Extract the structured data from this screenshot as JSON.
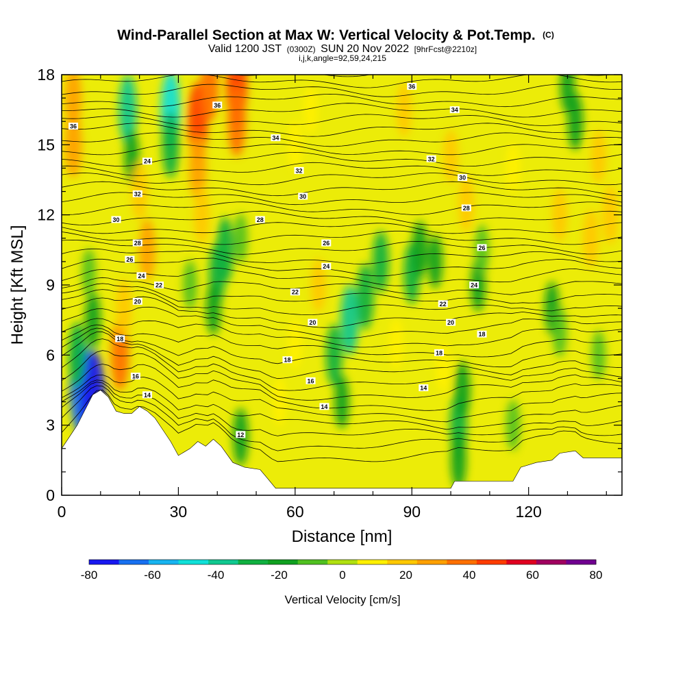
{
  "title": {
    "main": "Wind-Parallel Section at Max W: Vertical Velocity & Pot.Temp.",
    "copyright": "(C)",
    "valid_prefix": "Valid 1200 JST",
    "valid_utc": "(0300Z)",
    "valid_date": "SUN 20 Nov 2022",
    "forecast": "[9hrFcst@2210z]",
    "indices": "i,j,k,angle=92,59,24,215"
  },
  "chart_data": {
    "type": "heatmap",
    "xlabel": "Distance [nm]",
    "ylabel": "Height [Kft MSL]",
    "xlim": [
      0,
      144
    ],
    "ylim": [
      0,
      18
    ],
    "x_ticks": [
      "0",
      "30",
      "60",
      "90",
      "120"
    ],
    "x_tick_values": [
      0,
      30,
      60,
      90,
      120
    ],
    "y_ticks": [
      "0",
      "3",
      "6",
      "9",
      "12",
      "15",
      "18"
    ],
    "y_tick_values": [
      0,
      3,
      6,
      9,
      12,
      15,
      18
    ],
    "colorbar": {
      "label": "Vertical Velocity [cm/s]",
      "range": [
        -80,
        80
      ],
      "tick_labels": [
        "-80",
        "-60",
        "-40",
        "-20",
        "0",
        "20",
        "40",
        "60",
        "80"
      ],
      "tick_values": [
        -80,
        -60,
        -40,
        -20,
        0,
        20,
        40,
        60,
        80
      ],
      "colors": [
        "#1818f0",
        "#1870f0",
        "#18b4f0",
        "#10e0d8",
        "#10c890",
        "#10b040",
        "#10a020",
        "#50c020",
        "#b0e010",
        "#fff000",
        "#ffc800",
        "#ffa000",
        "#ff7000",
        "#ff3c00",
        "#e00020",
        "#a00060",
        "#700090"
      ]
    },
    "terrain_kft": [
      [
        0,
        2
      ],
      [
        4,
        3
      ],
      [
        8,
        4.3
      ],
      [
        10,
        4.5
      ],
      [
        12,
        4.2
      ],
      [
        14,
        3.6
      ],
      [
        16,
        3.5
      ],
      [
        18,
        3.5
      ],
      [
        20,
        3.8
      ],
      [
        22,
        3.6
      ],
      [
        24,
        3.3
      ],
      [
        26,
        2.8
      ],
      [
        28,
        2.3
      ],
      [
        30,
        1.7
      ],
      [
        33,
        2.0
      ],
      [
        35,
        2.3
      ],
      [
        37,
        2.1
      ],
      [
        39,
        2.4
      ],
      [
        41,
        2.1
      ],
      [
        44,
        1.4
      ],
      [
        47,
        1.2
      ],
      [
        51,
        1.1
      ],
      [
        53,
        0.7
      ],
      [
        55,
        0.3
      ],
      [
        60,
        0.3
      ],
      [
        70,
        0.3
      ],
      [
        85,
        0.3
      ],
      [
        92,
        0.3
      ],
      [
        100,
        0.3
      ],
      [
        101,
        0.6
      ],
      [
        116,
        0.6
      ],
      [
        118,
        1.2
      ],
      [
        122,
        1.4
      ],
      [
        126,
        1.5
      ],
      [
        128,
        1.8
      ],
      [
        132,
        1.9
      ],
      [
        134,
        1.6
      ],
      [
        144,
        1.6
      ]
    ],
    "w_cells": [
      {
        "x": 5,
        "y": 4.6,
        "w": -65
      },
      {
        "x": 8,
        "y": 4.0,
        "w": -75
      },
      {
        "x": 4,
        "y": 6.0,
        "w": -30
      },
      {
        "x": 8,
        "y": 7.5,
        "w": -20
      },
      {
        "x": 7,
        "y": 9.5,
        "w": -10
      },
      {
        "x": 3,
        "y": 17.0,
        "w": 25
      },
      {
        "x": 3,
        "y": 15.0,
        "w": 30
      },
      {
        "x": 17,
        "y": 16.5,
        "w": -35
      },
      {
        "x": 18,
        "y": 14.5,
        "w": -15
      },
      {
        "x": 28,
        "y": 16.5,
        "w": -45
      },
      {
        "x": 28,
        "y": 15.0,
        "w": -30
      },
      {
        "x": 35,
        "y": 16.0,
        "w": 45
      },
      {
        "x": 35,
        "y": 14.0,
        "w": 30
      },
      {
        "x": 36,
        "y": 12.0,
        "w": 20
      },
      {
        "x": 38,
        "y": 17.5,
        "w": 35
      },
      {
        "x": 45,
        "y": 17.5,
        "w": 50
      },
      {
        "x": 45,
        "y": 16.0,
        "w": 35
      },
      {
        "x": 15,
        "y": 6.0,
        "w": 35
      },
      {
        "x": 16,
        "y": 8.0,
        "w": 20
      },
      {
        "x": 20,
        "y": 13.0,
        "w": 20
      },
      {
        "x": 22,
        "y": 10.5,
        "w": 25
      },
      {
        "x": 40,
        "y": 9.5,
        "w": -25
      },
      {
        "x": 42,
        "y": 10.5,
        "w": -30
      },
      {
        "x": 39,
        "y": 8.0,
        "w": -15
      },
      {
        "x": 33,
        "y": 9.0,
        "w": -10
      },
      {
        "x": 46,
        "y": 11.0,
        "w": -10
      },
      {
        "x": 70,
        "y": 6.0,
        "w": -25
      },
      {
        "x": 74,
        "y": 7.5,
        "w": -35
      },
      {
        "x": 78,
        "y": 8.5,
        "w": -30
      },
      {
        "x": 82,
        "y": 10.0,
        "w": -25
      },
      {
        "x": 72,
        "y": 4.0,
        "w": -15
      },
      {
        "x": 90,
        "y": 9.5,
        "w": -25
      },
      {
        "x": 92,
        "y": 10.5,
        "w": -20
      },
      {
        "x": 96,
        "y": 10.0,
        "w": -15
      },
      {
        "x": 102,
        "y": 3.0,
        "w": -30
      },
      {
        "x": 103,
        "y": 4.5,
        "w": -20
      },
      {
        "x": 102,
        "y": 1.5,
        "w": -20
      },
      {
        "x": 107,
        "y": 9.0,
        "w": -15
      },
      {
        "x": 108,
        "y": 10.5,
        "w": -12
      },
      {
        "x": 116,
        "y": 3.0,
        "w": -12
      },
      {
        "x": 126,
        "y": 8.0,
        "w": -15
      },
      {
        "x": 128,
        "y": 7.0,
        "w": -12
      },
      {
        "x": 132,
        "y": 16.0,
        "w": -20
      },
      {
        "x": 130,
        "y": 17.5,
        "w": -15
      },
      {
        "x": 138,
        "y": 6.0,
        "w": -10
      },
      {
        "x": 100,
        "y": 14.5,
        "w": 15
      },
      {
        "x": 104,
        "y": 12.5,
        "w": 18
      },
      {
        "x": 66,
        "y": 9.0,
        "w": 15
      },
      {
        "x": 60,
        "y": 15.0,
        "w": 12
      },
      {
        "x": 64,
        "y": 16.5,
        "w": 10
      },
      {
        "x": 88,
        "y": 16.5,
        "w": 15
      },
      {
        "x": 128,
        "y": 12.0,
        "w": 15
      },
      {
        "x": 136,
        "y": 11.0,
        "w": 20
      },
      {
        "x": 141,
        "y": 12.0,
        "w": 22
      },
      {
        "x": 138,
        "y": 14.5,
        "w": 15
      },
      {
        "x": 116,
        "y": 14.0,
        "w": 12
      },
      {
        "x": 98,
        "y": 5.5,
        "w": 12
      },
      {
        "x": 56,
        "y": 4.0,
        "w": 10
      },
      {
        "x": 86,
        "y": 6.5,
        "w": 12
      },
      {
        "x": 46,
        "y": 2.5,
        "w": -20
      },
      {
        "x": 60,
        "y": 6.5,
        "w": 12
      }
    ],
    "theta_contours_K": [
      12,
      14,
      16,
      18,
      20,
      22,
      24,
      26,
      28,
      30,
      32,
      34,
      36
    ],
    "theta_labels": [
      {
        "text": "36",
        "x": 3,
        "y": 15.8
      },
      {
        "text": "36",
        "x": 40,
        "y": 16.7
      },
      {
        "text": "36",
        "x": 90,
        "y": 17.5
      },
      {
        "text": "34",
        "x": 55,
        "y": 15.3
      },
      {
        "text": "34",
        "x": 101,
        "y": 16.5
      },
      {
        "text": "24",
        "x": 22,
        "y": 14.3
      },
      {
        "text": "32",
        "x": 61,
        "y": 13.9
      },
      {
        "text": "32",
        "x": 95,
        "y": 14.4
      },
      {
        "text": "32",
        "x": 19.5,
        "y": 12.9
      },
      {
        "text": "30",
        "x": 62,
        "y": 12.8
      },
      {
        "text": "30",
        "x": 103,
        "y": 13.6
      },
      {
        "text": "30",
        "x": 14,
        "y": 11.8
      },
      {
        "text": "28",
        "x": 51,
        "y": 11.8
      },
      {
        "text": "28",
        "x": 104,
        "y": 12.3
      },
      {
        "text": "28",
        "x": 19.5,
        "y": 10.8
      },
      {
        "text": "26",
        "x": 68,
        "y": 10.8
      },
      {
        "text": "26",
        "x": 108,
        "y": 10.6
      },
      {
        "text": "26",
        "x": 17.5,
        "y": 10.1
      },
      {
        "text": "24",
        "x": 68,
        "y": 9.8
      },
      {
        "text": "24",
        "x": 106,
        "y": 9.0
      },
      {
        "text": "24",
        "x": 20.5,
        "y": 9.4
      },
      {
        "text": "22",
        "x": 25,
        "y": 9.0
      },
      {
        "text": "22",
        "x": 60,
        "y": 8.7
      },
      {
        "text": "22",
        "x": 98,
        "y": 8.2
      },
      {
        "text": "20",
        "x": 19.5,
        "y": 8.3
      },
      {
        "text": "20",
        "x": 64.5,
        "y": 7.4
      },
      {
        "text": "20",
        "x": 100,
        "y": 7.4
      },
      {
        "text": "18",
        "x": 15,
        "y": 6.7
      },
      {
        "text": "18",
        "x": 58,
        "y": 5.8
      },
      {
        "text": "18",
        "x": 97,
        "y": 6.1
      },
      {
        "text": "18",
        "x": 108,
        "y": 6.9
      },
      {
        "text": "16",
        "x": 19,
        "y": 5.1
      },
      {
        "text": "16",
        "x": 64,
        "y": 4.9
      },
      {
        "text": "14",
        "x": 22,
        "y": 4.3
      },
      {
        "text": "14",
        "x": 67.5,
        "y": 3.8
      },
      {
        "text": "14",
        "x": 93,
        "y": 4.6
      },
      {
        "text": "12",
        "x": 46,
        "y": 2.6
      }
    ]
  }
}
